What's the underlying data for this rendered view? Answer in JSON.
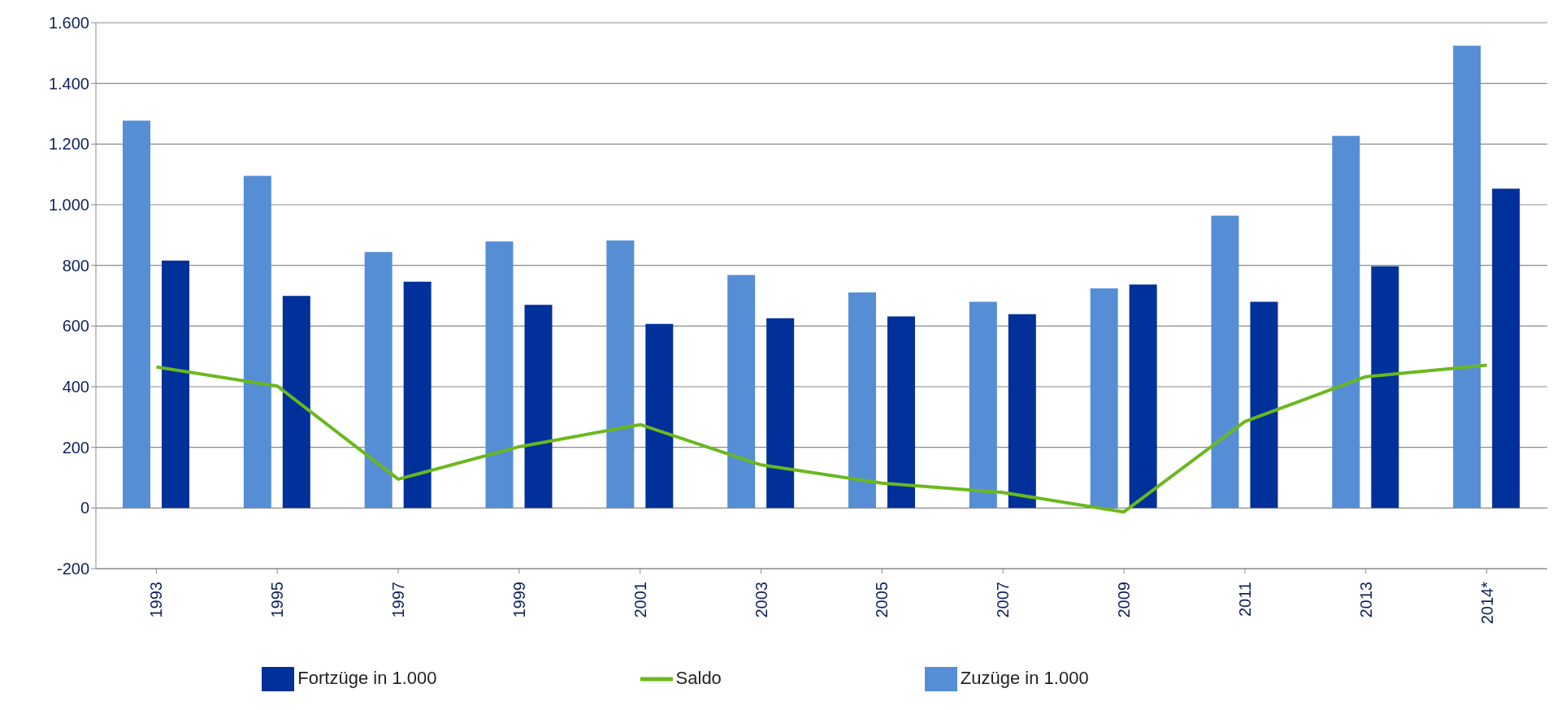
{
  "chart_data": {
    "type": "bar",
    "categories": [
      "1993",
      "1995",
      "1997",
      "1999",
      "2001",
      "2003",
      "2005",
      "2007",
      "2009",
      "2011",
      "2013",
      "2014*"
    ],
    "series": [
      {
        "name": "Zuzüge in 1.000",
        "color": "#558ed5",
        "values": [
          1277,
          1095,
          844,
          879,
          882,
          768,
          711,
          680,
          724,
          964,
          1227,
          1524
        ]
      },
      {
        "name": "Fortzüge in 1.000",
        "color": "#00309a",
        "values": [
          816,
          699,
          746,
          670,
          607,
          626,
          632,
          639,
          737,
          680,
          797,
          1053
        ]
      },
      {
        "name": "Saldo",
        "type": "line",
        "color": "#6ab81e",
        "marker": "none",
        "values": [
          465,
          402,
          95,
          202,
          275,
          142,
          82,
          51,
          -13,
          285,
          433,
          471
        ]
      }
    ],
    "ylim": [
      -200,
      1600
    ],
    "yticks": [
      {
        "value": -200,
        "label": "-200"
      },
      0,
      200,
      400,
      600,
      800,
      {
        "value": 1000,
        "label": "1.000"
      },
      {
        "value": 1200,
        "label": "1.200"
      },
      {
        "value": 1400,
        "label": "1.400"
      },
      {
        "value": 1600,
        "label": "1.600"
      }
    ],
    "grid": "y",
    "legend": "bottom"
  }
}
